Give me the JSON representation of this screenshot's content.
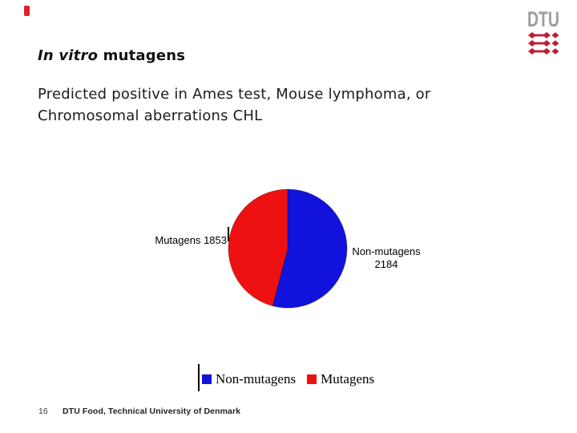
{
  "slide": {
    "accent_marker_color": "#dd2222",
    "title": {
      "italic_part": "In vitro",
      "regular_part": " mutagens"
    },
    "subtitle_line1": "Predicted positive in Ames test, Mouse lymphoma, or",
    "subtitle_line2": "Chromosomal aberrations CHL",
    "footer": {
      "page_number": "16",
      "text": "DTU Food, Technical University of Denmark"
    }
  },
  "logo": {
    "text": "DTU",
    "text_color": "#9c9ea1",
    "emblem_color": "#bb1f33"
  },
  "chart_data": {
    "type": "pie",
    "title": "",
    "start_angle_deg": 0,
    "direction": "clockwise",
    "slices": [
      {
        "label": "Non-mutagens",
        "value": 2184,
        "color": "#1212dd"
      },
      {
        "label": "Mutagens",
        "value": 1853,
        "color": "#ee1111"
      }
    ],
    "data_labels": {
      "mutagens": "Mutagens 1853",
      "non_mutagens_name": "Non-mutagens",
      "non_mutagens_value": "2184"
    },
    "legend": {
      "position": "bottom",
      "entries": [
        "Non-mutagens",
        "Mutagens"
      ]
    }
  }
}
